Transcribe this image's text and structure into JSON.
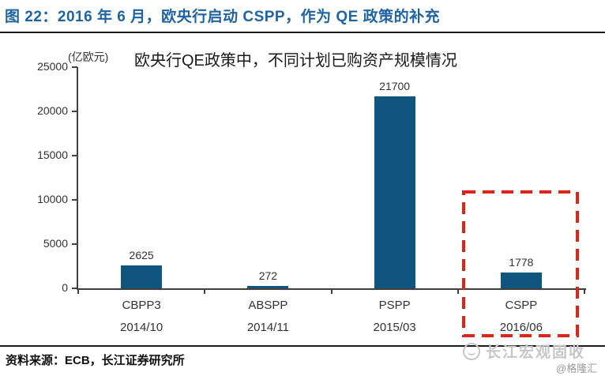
{
  "page": {
    "title": "图 22：2016 年 6 月，欧央行启动 CSPP，作为 QE 政策的补充",
    "source": "资料来源：ECB，长江证券研究所",
    "watermark": "长江宏观固收",
    "watermark_handle": "@格隆汇"
  },
  "colors": {
    "title_blue": "#1E64A5",
    "bar_blue": "#10557E",
    "highlight_red": "#E02318",
    "axis_gray": "#404040",
    "watermark_gray": "#C6C6C6"
  },
  "chart_data": {
    "type": "bar",
    "title": "欧央行QE政策中，不同计划已购资产规模情况",
    "unit_label": "(亿欧元)",
    "categories": [
      "CBPP3",
      "ABSPP",
      "PSPP",
      "CSPP"
    ],
    "category_dates": [
      "2014/10",
      "2014/11",
      "2015/03",
      "2016/06"
    ],
    "values": [
      2625,
      272,
      21700,
      1778
    ],
    "ylim": [
      0,
      25000
    ],
    "yticks": [
      0,
      5000,
      10000,
      15000,
      20000,
      25000
    ],
    "grid": false,
    "legend": null,
    "highlight": {
      "category": "CSPP",
      "style": "red-dashed-box"
    }
  }
}
